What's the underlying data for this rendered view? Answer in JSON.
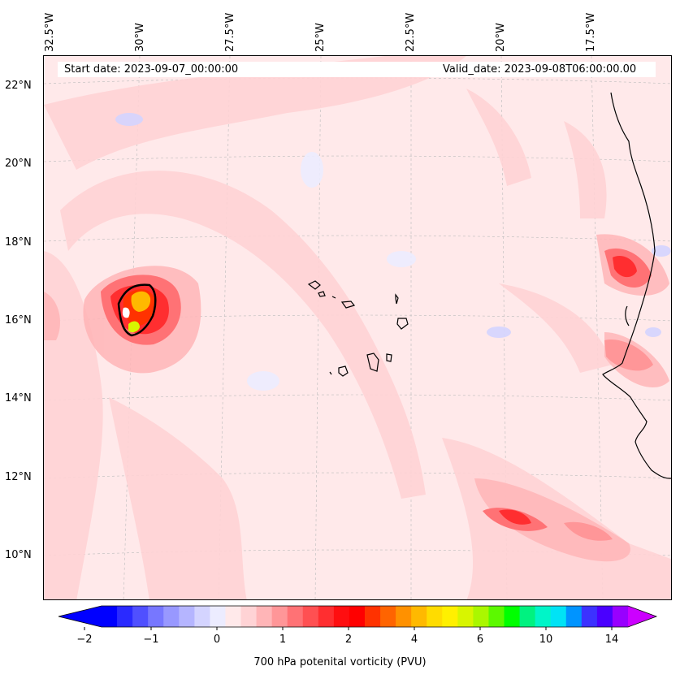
{
  "header": {
    "start_date": "Start date: 2023-09-07_00:00:00",
    "valid_date": "Valid_date: 2023-09-08T06:00:00.00"
  },
  "axes": {
    "lon_labels": [
      "32.5°W",
      "30°W",
      "27.5°W",
      "25°W",
      "22.5°W",
      "20°W",
      "17.5°W"
    ],
    "lat_labels": [
      "22°N",
      "20°N",
      "18°N",
      "16°N",
      "14°N",
      "12°N",
      "10°N"
    ]
  },
  "colorbar": {
    "label": "700 hPa potenital vorticity (PVU)",
    "ticks": [
      "−2",
      "−1",
      "0",
      "1",
      "2",
      "4",
      "6",
      "10",
      "14"
    ],
    "colors": [
      "#0000ff",
      "#2a2aff",
      "#5050ff",
      "#7777ff",
      "#9898ff",
      "#b5b5ff",
      "#d4d4ff",
      "#ececff",
      "#ffe9ea",
      "#ffd3d5",
      "#ffb5b7",
      "#ff9698",
      "#ff7275",
      "#ff5052",
      "#ff2e30",
      "#ff0e10",
      "#ff0000",
      "#ff3200",
      "#ff6400",
      "#ff9100",
      "#ffb900",
      "#ffdc00",
      "#fff000",
      "#d8f500",
      "#aaf700",
      "#5cf900",
      "#00ff00",
      "#00f280",
      "#00f5c8",
      "#00e3f5",
      "#0094ff",
      "#3c32ff",
      "#4a00ff",
      "#9800ff"
    ],
    "arrow_low_color": "#0000ff",
    "arrow_high_color": "#cc00ff"
  }
}
